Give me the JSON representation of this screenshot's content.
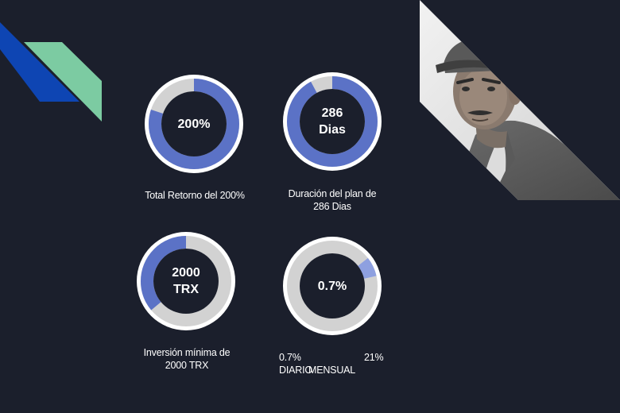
{
  "colors": {
    "background": "#1b1f2c",
    "ring_outer": "#ffffff",
    "track": "#d2d2d2",
    "progress": "#5b72c6",
    "progress_light": "#8ea0e0",
    "accent_blue": "#0e45b3",
    "accent_green": "#7ccba2"
  },
  "stats": [
    {
      "center": "200%",
      "caption": "Total Retorno del 200%",
      "fill_fraction": 0.8
    },
    {
      "center": "286\nDias",
      "caption": "Duración del plan de\n286 Dias",
      "fill_fraction": 0.92
    },
    {
      "center": "2000\nTRX",
      "caption": "Inversión mínima de\n2000 TRX",
      "fill_fraction": 0.36
    },
    {
      "center": "0.7%",
      "caption_left": "0.7% DIARIO",
      "caption_right": "21%",
      "caption_bottom": "MENSUAL",
      "fill_fraction": 0.07
    }
  ],
  "photo": {
    "icon": "worker-portrait-image"
  }
}
